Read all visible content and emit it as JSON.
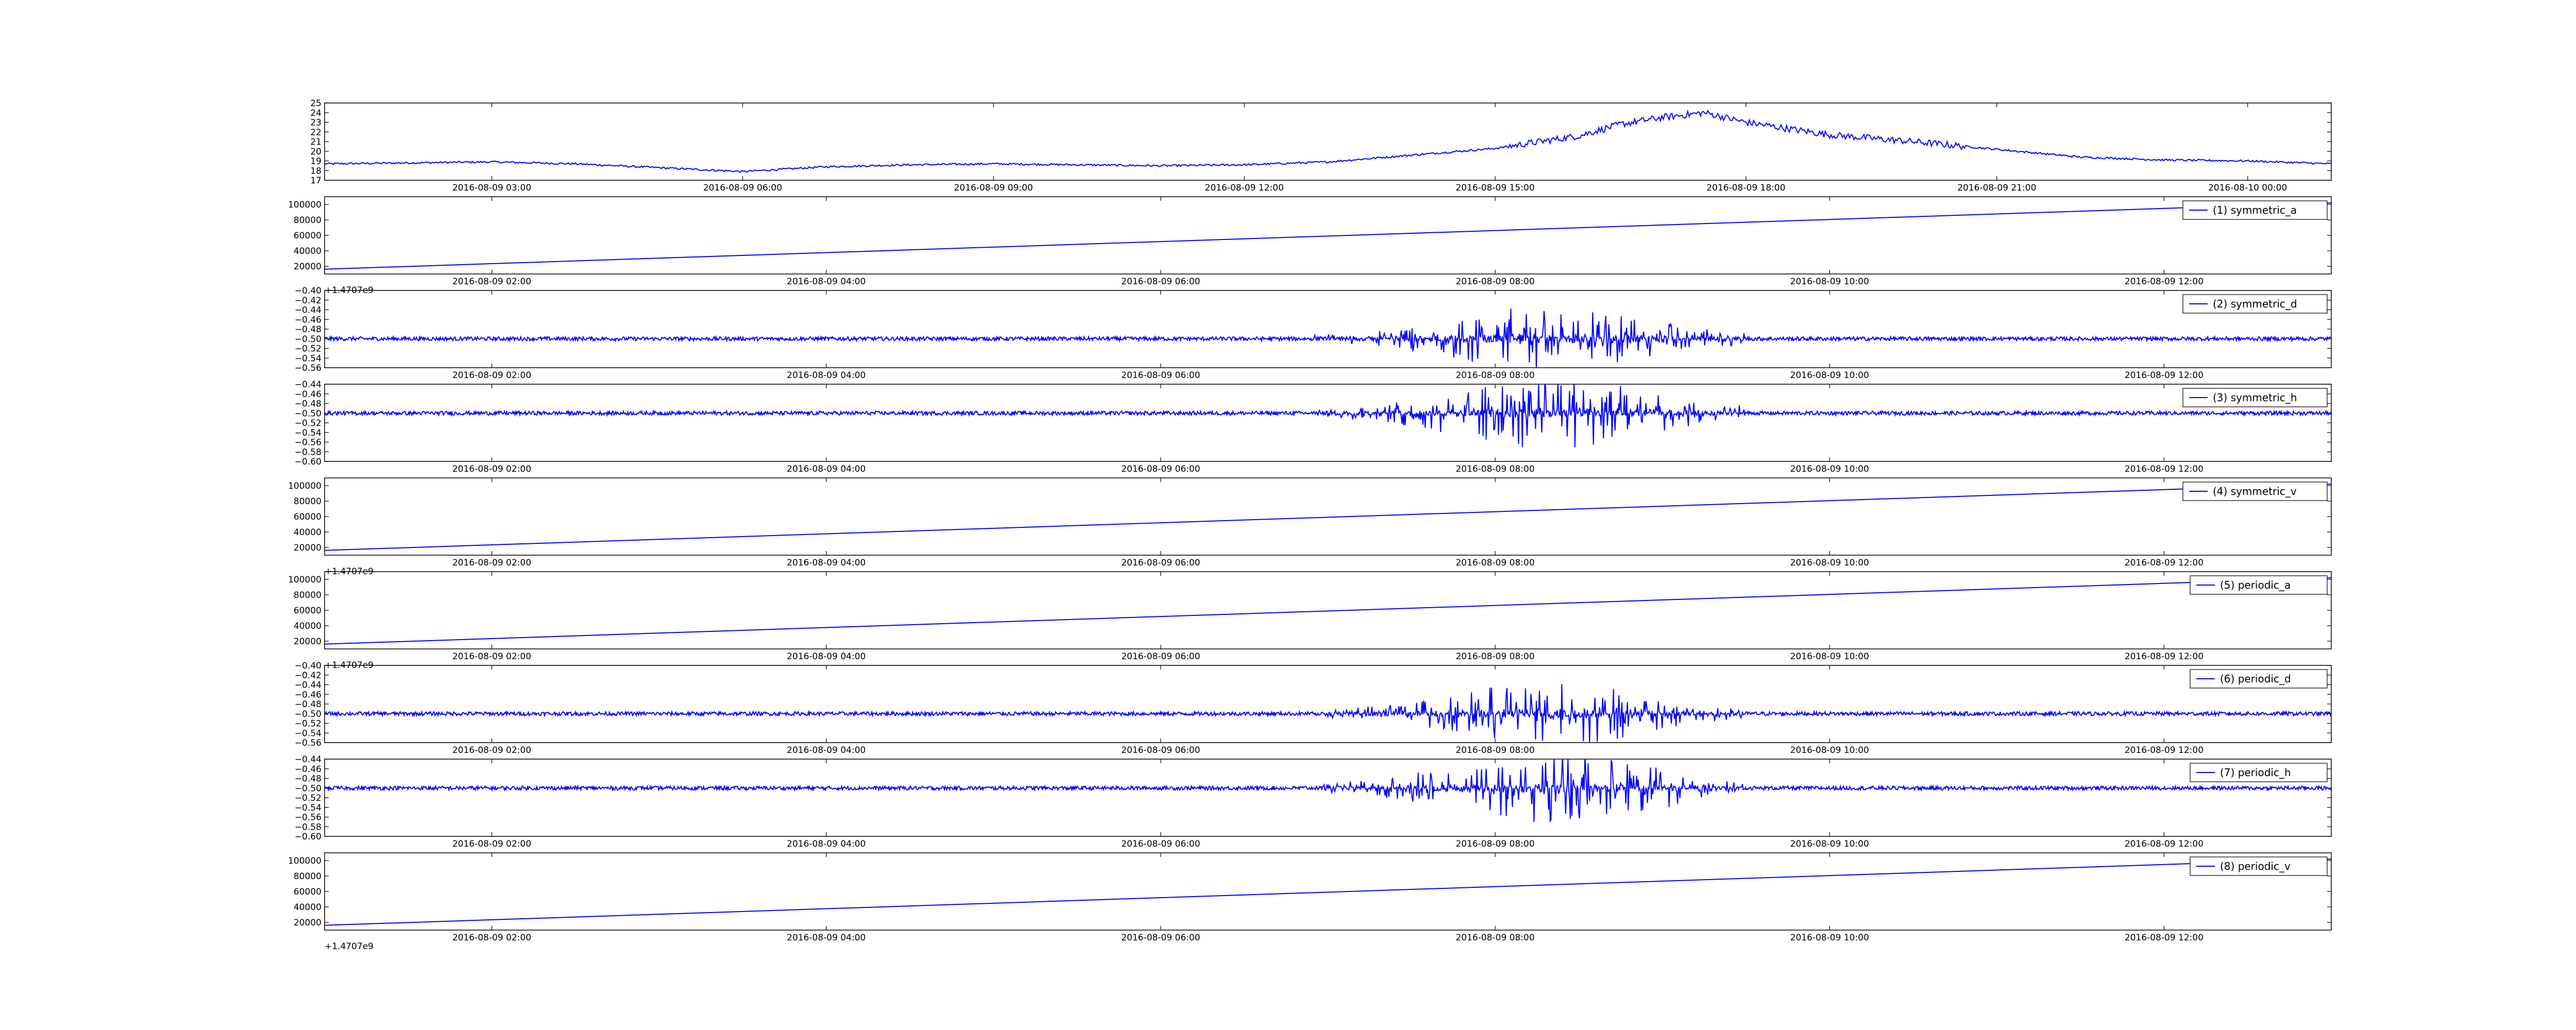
{
  "figure": {
    "background": "#ffffff",
    "line_color": "#0000ff"
  },
  "chart_data": [
    {
      "type": "line",
      "title": "",
      "xlabel": "",
      "ylabel": "",
      "x_offset_label": "",
      "x_ticks": [
        "2016-08-09 03:00",
        "2016-08-09 06:00",
        "2016-08-09 09:00",
        "2016-08-09 12:00",
        "2016-08-09 15:00",
        "2016-08-09 18:00",
        "2016-08-09 21:00",
        "2016-08-10 00:00"
      ],
      "x_range": [
        "2016-08-09 01:00",
        "2016-08-10 01:00"
      ],
      "y_ticks": [
        "17",
        "18",
        "19",
        "20",
        "21",
        "22",
        "23",
        "24",
        "25"
      ],
      "ylim": [
        17,
        25
      ],
      "grid": false,
      "legend": null,
      "series": [
        {
          "name": "",
          "x": [
            "01:00",
            "02:00",
            "03:00",
            "04:00",
            "05:00",
            "06:00",
            "07:00",
            "08:00",
            "09:00",
            "10:00",
            "11:00",
            "12:00",
            "13:00",
            "14:00",
            "15:00",
            "16:00",
            "16:30",
            "17:00",
            "17:30",
            "18:00",
            "19:00",
            "20:00",
            "21:00",
            "22:00",
            "23:00",
            "00:00",
            "01:00"
          ],
          "values": [
            18.7,
            18.8,
            18.9,
            18.7,
            18.3,
            17.9,
            18.4,
            18.6,
            18.7,
            18.6,
            18.5,
            18.6,
            18.9,
            19.6,
            20.3,
            21.6,
            22.8,
            23.5,
            24.0,
            23.0,
            21.7,
            21.0,
            20.2,
            19.4,
            19.1,
            19.0,
            18.7
          ]
        }
      ]
    },
    {
      "type": "line",
      "title": "",
      "xlabel": "",
      "ylabel": "",
      "x_offset_label": "+1.4707e9",
      "x_ticks": [
        "2016-08-09 02:00",
        "2016-08-09 04:00",
        "2016-08-09 06:00",
        "2016-08-09 08:00",
        "2016-08-09 10:00",
        "2016-08-09 12:00"
      ],
      "x_range": [
        "2016-08-09 01:00",
        "2016-08-09 13:00"
      ],
      "y_ticks": [
        "20000",
        "40000",
        "60000",
        "80000",
        "100000"
      ],
      "ylim": [
        10000,
        110000
      ],
      "grid": false,
      "legend": "upper right",
      "series": [
        {
          "name": "(1) symmetric_a",
          "x": [
            "2016-08-09 01:00",
            "2016-08-09 13:00"
          ],
          "values": [
            16200,
            102000
          ]
        }
      ]
    },
    {
      "type": "line",
      "title": "",
      "xlabel": "",
      "ylabel": "",
      "x_offset_label": "",
      "x_ticks": [
        "2016-08-09 02:00",
        "2016-08-09 04:00",
        "2016-08-09 06:00",
        "2016-08-09 08:00",
        "2016-08-09 10:00",
        "2016-08-09 12:00"
      ],
      "x_range": [
        "2016-08-09 01:00",
        "2016-08-09 13:00"
      ],
      "y_ticks": [
        "−0.56",
        "−0.54",
        "−0.52",
        "−0.50",
        "−0.48",
        "−0.46",
        "−0.44",
        "−0.42",
        "−0.40"
      ],
      "ylim": [
        -0.56,
        -0.4
      ],
      "grid": false,
      "legend": "upper right",
      "series": [
        {
          "name": "(2) symmetric_d",
          "baseline": -0.5,
          "noise": 0.004,
          "burst_peak": 0.065,
          "burst_center": "2016-08-09 08:20",
          "burst_range": [
            "2016-08-09 06:55",
            "2016-08-09 09:30"
          ]
        }
      ]
    },
    {
      "type": "line",
      "title": "",
      "xlabel": "",
      "ylabel": "",
      "x_offset_label": "",
      "x_ticks": [
        "2016-08-09 02:00",
        "2016-08-09 04:00",
        "2016-08-09 06:00",
        "2016-08-09 08:00",
        "2016-08-09 10:00",
        "2016-08-09 12:00"
      ],
      "x_range": [
        "2016-08-09 01:00",
        "2016-08-09 13:00"
      ],
      "y_ticks": [
        "−0.60",
        "−0.58",
        "−0.56",
        "−0.54",
        "−0.52",
        "−0.50",
        "−0.48",
        "−0.46",
        "−0.44"
      ],
      "ylim": [
        -0.6,
        -0.44
      ],
      "grid": false,
      "legend": "upper right",
      "series": [
        {
          "name": "(3) symmetric_h",
          "baseline": -0.5,
          "noise": 0.004,
          "burst_peak": 0.075,
          "burst_center": "2016-08-09 08:20",
          "burst_range": [
            "2016-08-09 06:55",
            "2016-08-09 09:30"
          ]
        }
      ]
    },
    {
      "type": "line",
      "title": "",
      "xlabel": "",
      "ylabel": "",
      "x_offset_label": "+1.4707e9",
      "x_ticks": [
        "2016-08-09 02:00",
        "2016-08-09 04:00",
        "2016-08-09 06:00",
        "2016-08-09 08:00",
        "2016-08-09 10:00",
        "2016-08-09 12:00"
      ],
      "x_range": [
        "2016-08-09 01:00",
        "2016-08-09 13:00"
      ],
      "y_ticks": [
        "20000",
        "40000",
        "60000",
        "80000",
        "100000"
      ],
      "ylim": [
        10000,
        110000
      ],
      "grid": false,
      "legend": "upper right",
      "series": [
        {
          "name": "(4) symmetric_v",
          "x": [
            "2016-08-09 01:00",
            "2016-08-09 13:00"
          ],
          "values": [
            16200,
            102000
          ]
        }
      ]
    },
    {
      "type": "line",
      "title": "",
      "xlabel": "",
      "ylabel": "",
      "x_offset_label": "+1.4707e9",
      "x_ticks": [
        "2016-08-09 02:00",
        "2016-08-09 04:00",
        "2016-08-09 06:00",
        "2016-08-09 08:00",
        "2016-08-09 10:00",
        "2016-08-09 12:00"
      ],
      "x_range": [
        "2016-08-09 01:00",
        "2016-08-09 13:00"
      ],
      "y_ticks": [
        "20000",
        "40000",
        "60000",
        "80000",
        "100000"
      ],
      "ylim": [
        10000,
        110000
      ],
      "grid": false,
      "legend": "upper right",
      "series": [
        {
          "name": "(5) periodic_a",
          "x": [
            "2016-08-09 01:00",
            "2016-08-09 13:00"
          ],
          "values": [
            16200,
            102000
          ]
        }
      ]
    },
    {
      "type": "line",
      "title": "",
      "xlabel": "",
      "ylabel": "",
      "x_offset_label": "",
      "x_ticks": [
        "2016-08-09 02:00",
        "2016-08-09 04:00",
        "2016-08-09 06:00",
        "2016-08-09 08:00",
        "2016-08-09 10:00",
        "2016-08-09 12:00"
      ],
      "x_range": [
        "2016-08-09 01:00",
        "2016-08-09 13:00"
      ],
      "y_ticks": [
        "−0.56",
        "−0.54",
        "−0.52",
        "−0.50",
        "−0.48",
        "−0.46",
        "−0.44",
        "−0.42",
        "−0.40"
      ],
      "ylim": [
        -0.56,
        -0.4
      ],
      "grid": false,
      "legend": "upper right",
      "series": [
        {
          "name": "(6) periodic_d",
          "baseline": -0.5,
          "noise": 0.004,
          "burst_peak": 0.065,
          "burst_center": "2016-08-09 08:20",
          "burst_range": [
            "2016-08-09 06:55",
            "2016-08-09 09:30"
          ]
        }
      ]
    },
    {
      "type": "line",
      "title": "",
      "xlabel": "",
      "ylabel": "",
      "x_offset_label": "",
      "x_ticks": [
        "2016-08-09 02:00",
        "2016-08-09 04:00",
        "2016-08-09 06:00",
        "2016-08-09 08:00",
        "2016-08-09 10:00",
        "2016-08-09 12:00"
      ],
      "x_range": [
        "2016-08-09 01:00",
        "2016-08-09 13:00"
      ],
      "y_ticks": [
        "−0.60",
        "−0.58",
        "−0.56",
        "−0.54",
        "−0.52",
        "−0.50",
        "−0.48",
        "−0.46",
        "−0.44"
      ],
      "ylim": [
        -0.6,
        -0.44
      ],
      "grid": false,
      "legend": "upper right",
      "series": [
        {
          "name": "(7) periodic_h",
          "baseline": -0.5,
          "noise": 0.004,
          "burst_peak": 0.075,
          "burst_center": "2016-08-09 08:20",
          "burst_range": [
            "2016-08-09 06:55",
            "2016-08-09 09:30"
          ]
        }
      ]
    },
    {
      "type": "line",
      "title": "",
      "xlabel": "",
      "ylabel": "",
      "x_offset_label": "+1.4707e9",
      "x_ticks": [
        "2016-08-09 02:00",
        "2016-08-09 04:00",
        "2016-08-09 06:00",
        "2016-08-09 08:00",
        "2016-08-09 10:00",
        "2016-08-09 12:00"
      ],
      "x_range": [
        "2016-08-09 01:00",
        "2016-08-09 13:00"
      ],
      "y_ticks": [
        "20000",
        "40000",
        "60000",
        "80000",
        "100000"
      ],
      "ylim": [
        10000,
        110000
      ],
      "grid": false,
      "legend": "upper right",
      "series": [
        {
          "name": "(8) periodic_v",
          "x": [
            "2016-08-09 01:00",
            "2016-08-09 13:00"
          ],
          "values": [
            16200,
            102000
          ]
        }
      ]
    }
  ]
}
